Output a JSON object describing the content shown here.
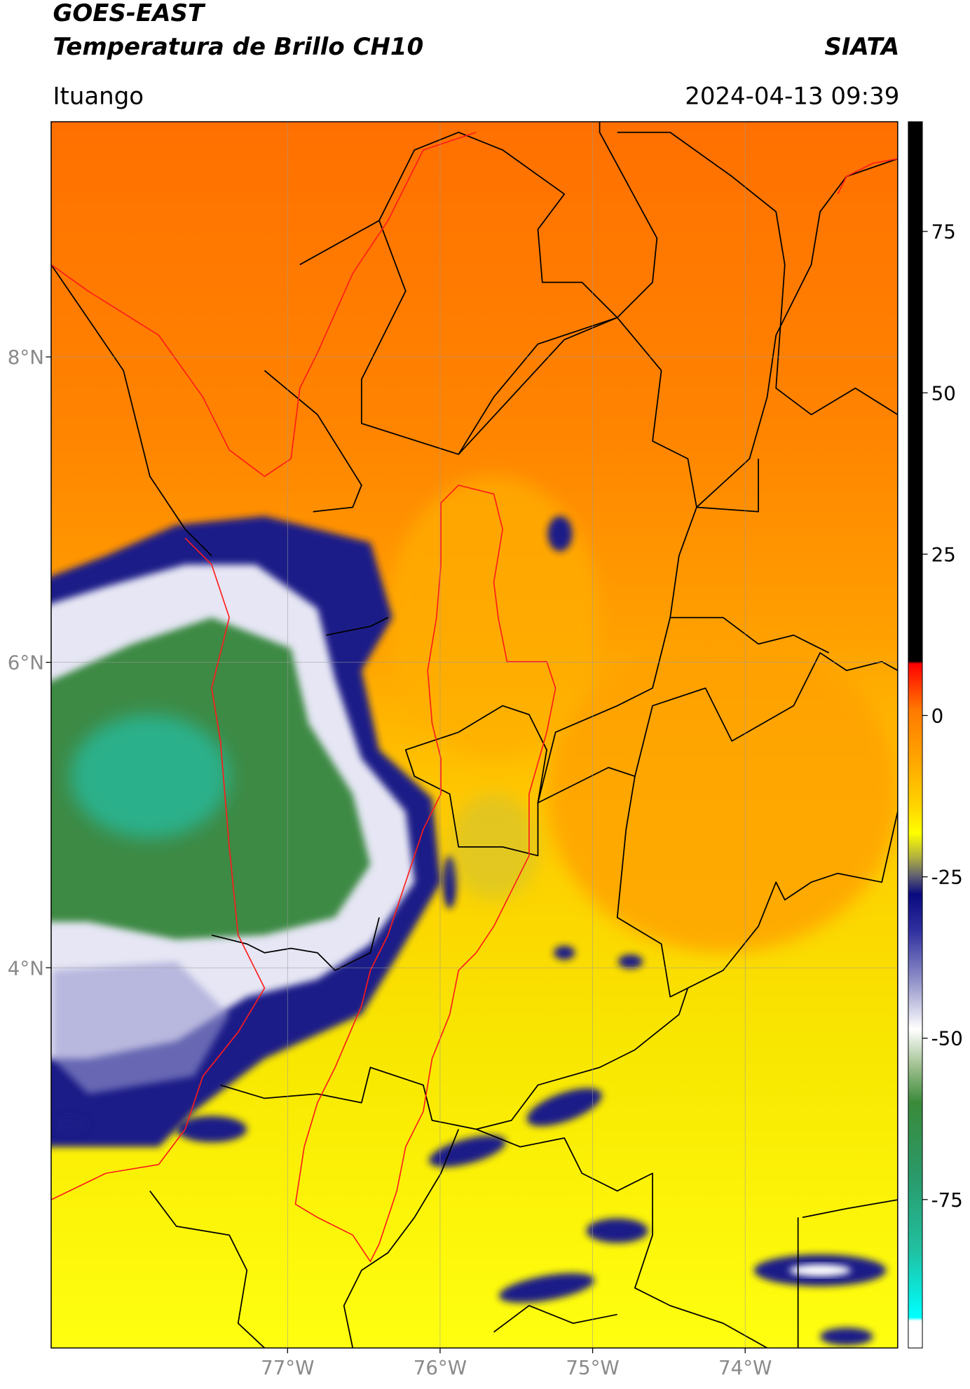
{
  "header": {
    "title": "GOES-EAST",
    "subtitle": "Temperatura de Brillo CH10",
    "source": "SIATA",
    "location": "Ituango",
    "datetime": "2024-04-13 09:39"
  },
  "map": {
    "xlim": [
      -78.55,
      -73.0
    ],
    "ylim": [
      1.51,
      9.54
    ],
    "xticks": [
      {
        "value": -77,
        "label": "77°W"
      },
      {
        "value": -76,
        "label": "76°W"
      },
      {
        "value": -75,
        "label": "75°W"
      },
      {
        "value": -74,
        "label": "74°W"
      }
    ],
    "yticks": [
      {
        "value": 8,
        "label": "8°N"
      },
      {
        "value": 6,
        "label": "6°N"
      },
      {
        "value": 4,
        "label": "4°N"
      }
    ],
    "grid": true,
    "colorbar": {
      "lim": [
        -98,
        92
      ],
      "ticks": [
        75,
        50,
        25,
        0,
        -25,
        -50,
        -75
      ]
    }
  }
}
